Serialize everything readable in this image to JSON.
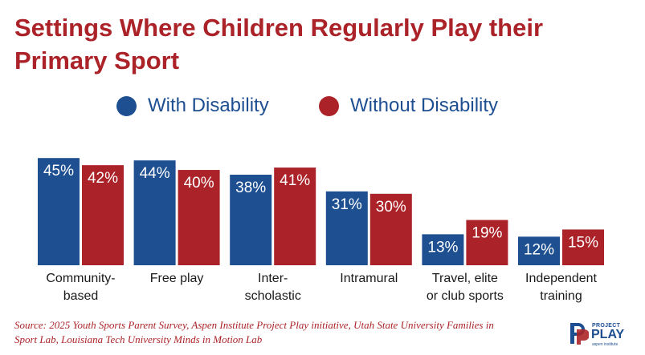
{
  "chart_data": {
    "type": "bar",
    "title": "Settings Where Children Regularly Play their Primary Sport",
    "categories": [
      [
        "Community-",
        "based"
      ],
      [
        "Free play"
      ],
      [
        "Inter-",
        "scholastic"
      ],
      [
        "Intramural"
      ],
      [
        "Travel, elite",
        "or club sports"
      ],
      [
        "Independent",
        "training"
      ]
    ],
    "series": [
      {
        "name": "With Disability",
        "color": "#1d4f91",
        "values": [
          45,
          44,
          38,
          31,
          13,
          12
        ]
      },
      {
        "name": "Without Disability",
        "color": "#ab2328",
        "values": [
          42,
          40,
          41,
          30,
          19,
          15
        ]
      }
    ],
    "value_suffix": "%",
    "ylim": [
      0,
      50
    ],
    "grid": false,
    "legend_position": "top-center"
  },
  "source": "Source: 2025 Youth Sports Parent Survey, Aspen Institute Project Play initiative, Utah State University Families in Sport Lab, Louisiana Tech University Minds in Motion Lab",
  "logo": {
    "top": "PROJECT",
    "main": "PLAY",
    "sub": "aspen institute"
  }
}
